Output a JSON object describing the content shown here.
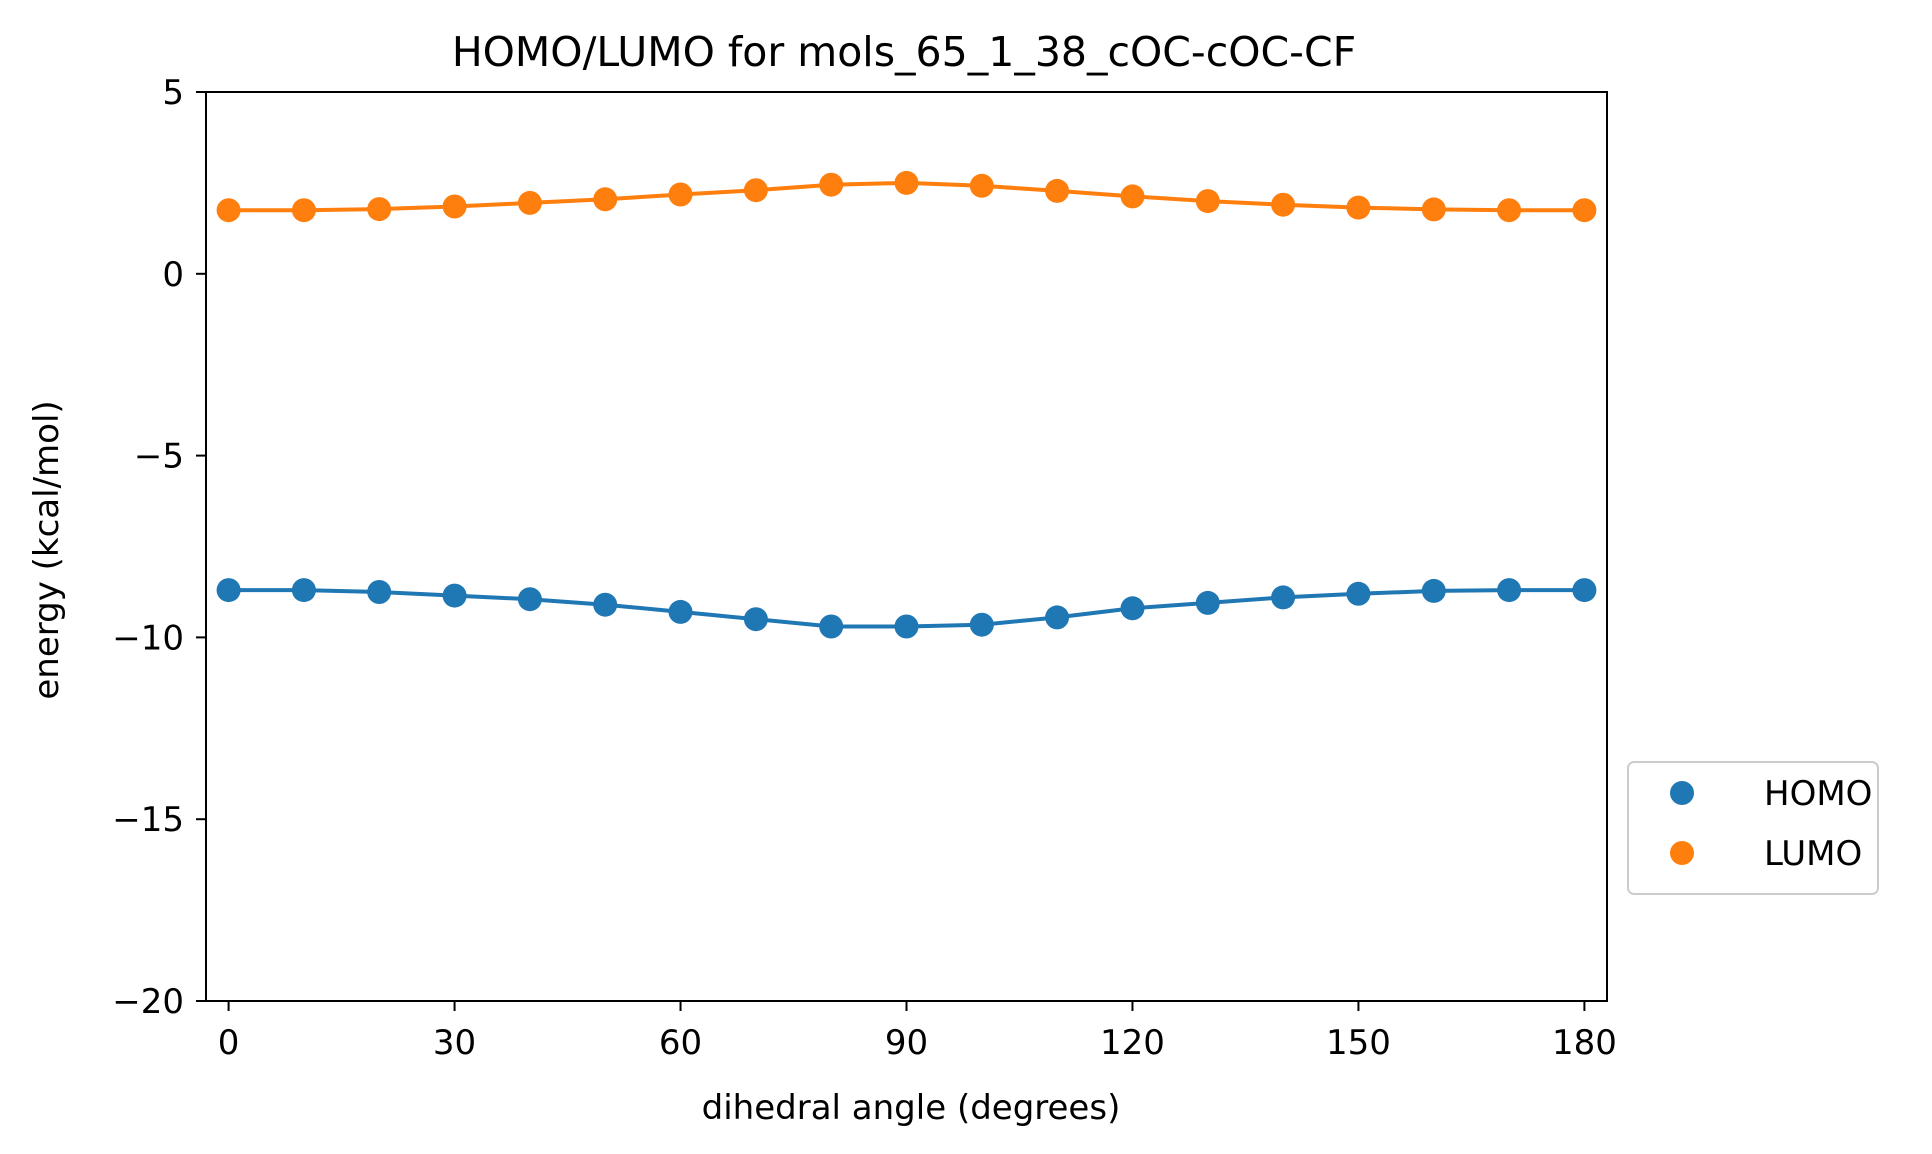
{
  "chart_data": {
    "type": "line",
    "title": "HOMO/LUMO for mols_65_1_38_cOC-cOC-CF",
    "xlabel": "dihedral angle (degrees)",
    "ylabel": "energy (kcal/mol)",
    "xlim": [
      -3,
      183
    ],
    "ylim": [
      -20,
      5
    ],
    "xticks": [
      0,
      30,
      60,
      90,
      120,
      150,
      180
    ],
    "yticks": [
      5,
      0,
      -5,
      -10,
      -15,
      -20
    ],
    "ytick_labels": [
      "5",
      "0",
      "−5",
      "−10",
      "−15",
      "−20"
    ],
    "grid": false,
    "legend_position": "outside-right-lower",
    "x": [
      0,
      10,
      20,
      30,
      40,
      50,
      60,
      70,
      80,
      90,
      100,
      110,
      120,
      130,
      140,
      150,
      160,
      170,
      180
    ],
    "series": [
      {
        "name": "HOMO",
        "color": "#1f77b4",
        "values": [
          -8.7,
          -8.7,
          -8.75,
          -8.85,
          -8.95,
          -9.1,
          -9.3,
          -9.5,
          -9.7,
          -9.7,
          -9.65,
          -9.45,
          -9.2,
          -9.05,
          -8.9,
          -8.8,
          -8.72,
          -8.7,
          -8.7
        ]
      },
      {
        "name": "LUMO",
        "color": "#ff7f0e",
        "values": [
          1.75,
          1.75,
          1.78,
          1.85,
          1.95,
          2.05,
          2.18,
          2.3,
          2.45,
          2.5,
          2.42,
          2.28,
          2.13,
          2.0,
          1.9,
          1.82,
          1.77,
          1.75,
          1.75
        ]
      }
    ]
  }
}
